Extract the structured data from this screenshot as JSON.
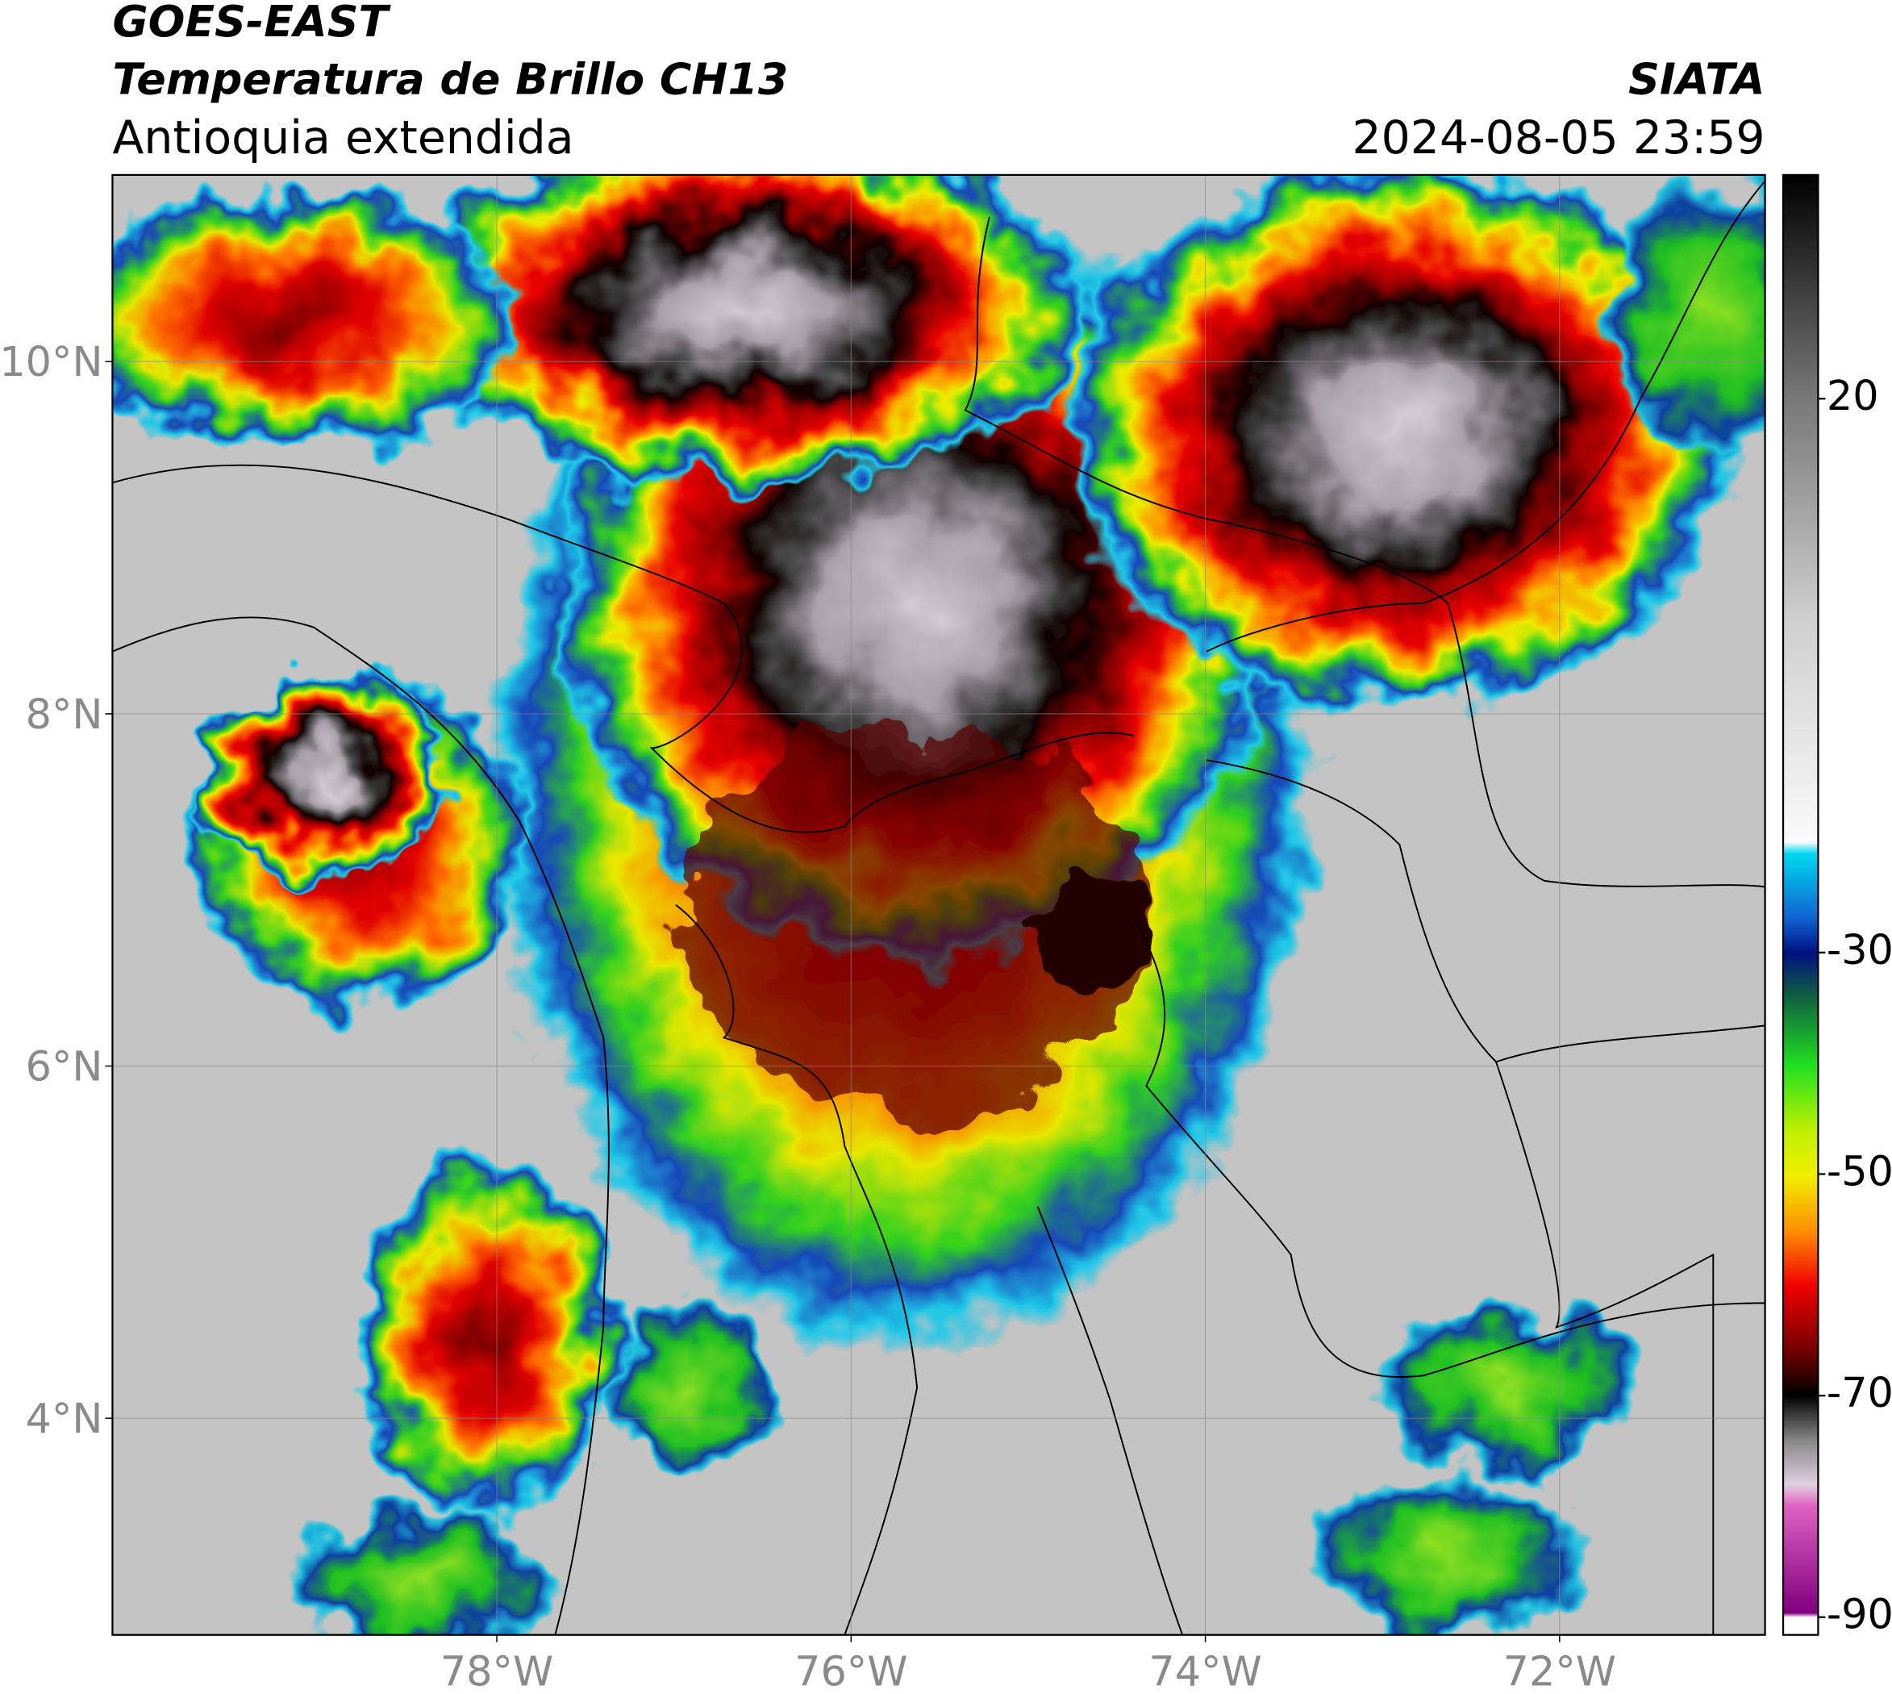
{
  "header": {
    "title": "GOES-EAST",
    "subtitle": "Temperatura de Brillo CH13",
    "region": "Antioquia extendida",
    "source": "SIATA",
    "datetime": "2024-08-05 23:59"
  },
  "map": {
    "xlim": [
      -80.17,
      -70.84
    ],
    "ylim": [
      2.77,
      11.06
    ],
    "xticks": [
      {
        "value": -78,
        "label": "78°W"
      },
      {
        "value": -76,
        "label": "76°W"
      },
      {
        "value": -74,
        "label": "74°W"
      },
      {
        "value": -72,
        "label": "72°W"
      }
    ],
    "yticks": [
      {
        "value": 10,
        "label": "10°N"
      },
      {
        "value": 8,
        "label": "8°N"
      },
      {
        "value": 6,
        "label": "6°N"
      },
      {
        "value": 4,
        "label": "4°N"
      }
    ],
    "grid": true
  },
  "colorbar": {
    "lim": [
      -91.6,
      40.2
    ],
    "ticks": [
      20,
      -30,
      -50,
      -70,
      -90
    ]
  }
}
